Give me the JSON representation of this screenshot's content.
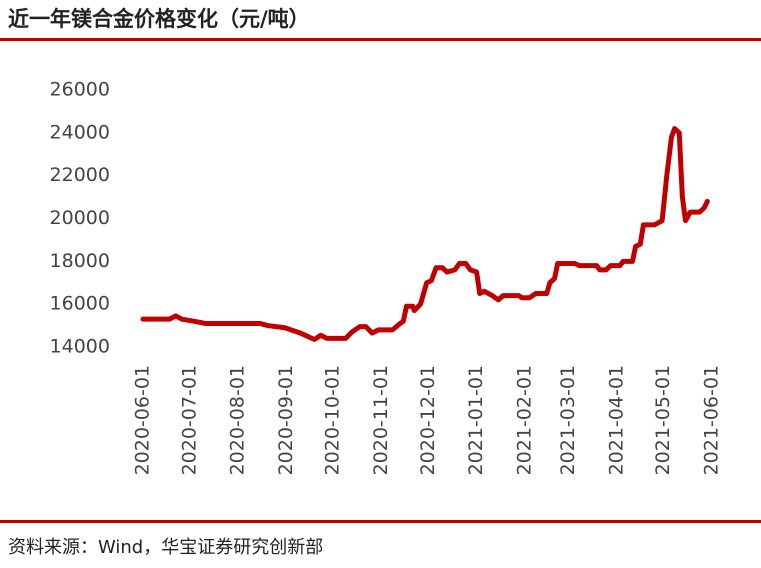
{
  "chart_data": {
    "type": "line",
    "title": "近一年镁合金价格变化（元/吨）",
    "source": "资料来源：Wind，华宝证券研究创新部",
    "x": [
      "2020-06-01",
      "2020-06-18",
      "2020-06-22",
      "2020-06-26",
      "2020-07-04",
      "2020-07-11",
      "2020-08-15",
      "2020-08-20",
      "2020-08-31",
      "2020-09-10",
      "2020-09-16",
      "2020-09-19",
      "2020-09-23",
      "2020-09-27",
      "2020-10-09",
      "2020-10-13",
      "2020-10-18",
      "2020-10-22",
      "2020-10-26",
      "2020-10-30",
      "2020-11-08",
      "2020-11-13",
      "2020-11-15",
      "2020-11-17",
      "2020-11-21",
      "2020-11-22",
      "2020-11-26",
      "2020-11-30",
      "2020-12-03",
      "2020-12-06",
      "2020-12-10",
      "2020-12-13",
      "2020-12-18",
      "2020-12-21",
      "2020-12-25",
      "2020-12-28",
      "2021-01-01",
      "2021-01-03",
      "2021-01-06",
      "2021-01-11",
      "2021-01-15",
      "2021-01-18",
      "2021-01-28",
      "2021-01-30",
      "2021-02-04",
      "2021-02-08",
      "2021-02-15",
      "2021-02-17",
      "2021-02-20",
      "2021-02-22",
      "2021-03-05",
      "2021-03-08",
      "2021-03-19",
      "2021-03-21",
      "2021-03-25",
      "2021-03-28",
      "2021-04-03",
      "2021-04-05",
      "2021-04-11",
      "2021-04-13",
      "2021-04-16",
      "2021-04-18",
      "2021-04-25",
      "2021-04-30",
      "2021-05-03",
      "2021-05-06",
      "2021-05-08",
      "2021-05-11",
      "2021-05-13",
      "2021-05-15",
      "2021-05-18",
      "2021-05-24",
      "2021-05-27",
      "2021-05-29"
    ],
    "series": [
      {
        "color": "#c00000",
        "values": [
          15300,
          15300,
          15450,
          15300,
          15200,
          15100,
          15100,
          15000,
          14900,
          14650,
          14450,
          14350,
          14550,
          14400,
          14400,
          14700,
          14950,
          14950,
          14650,
          14800,
          14800,
          15100,
          15200,
          15900,
          15900,
          15700,
          16000,
          17000,
          17100,
          17700,
          17700,
          17500,
          17600,
          17900,
          17900,
          17600,
          17500,
          16500,
          16600,
          16400,
          16200,
          16400,
          16400,
          16300,
          16300,
          16500,
          16500,
          17000,
          17200,
          17900,
          17900,
          17800,
          17800,
          17600,
          17600,
          17800,
          17800,
          18000,
          18000,
          18700,
          18800,
          19700,
          19700,
          19900,
          22000,
          23800,
          24200,
          24000,
          21000,
          19900,
          20300,
          20300,
          20500,
          20800
        ]
      }
    ],
    "xlim": [
      "2020-06-01",
      "2021-06-01"
    ],
    "xticks": [
      "2020-06-01",
      "2020-07-01",
      "2020-08-01",
      "2020-09-01",
      "2020-10-01",
      "2020-11-01",
      "2020-12-01",
      "2021-01-01",
      "2021-02-01",
      "2021-03-01",
      "2021-04-01",
      "2021-05-01",
      "2021-06-01"
    ],
    "ylim": [
      14000,
      26000
    ],
    "yticks": [
      14000,
      16000,
      18000,
      20000,
      22000,
      24000,
      26000
    ],
    "grid": false
  }
}
